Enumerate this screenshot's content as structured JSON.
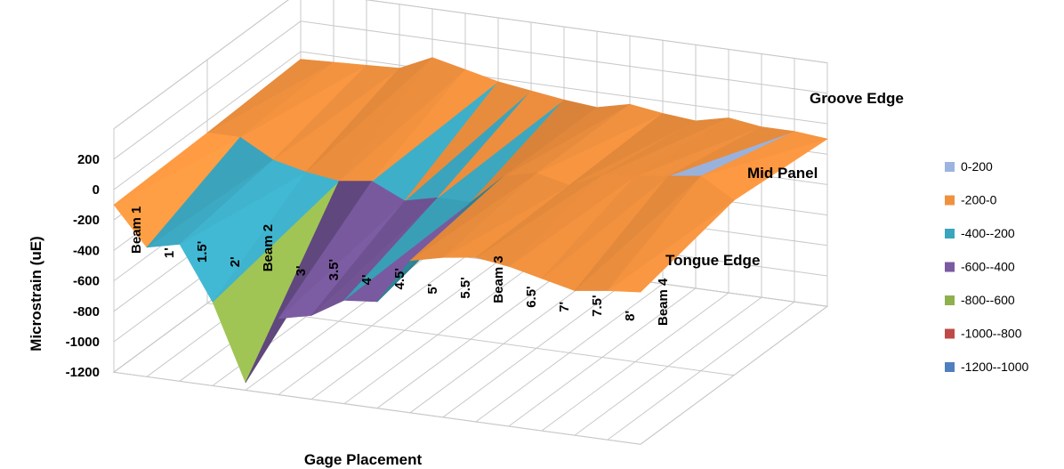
{
  "chart_data": {
    "type": "surface",
    "xlabel": "Gage Placement",
    "ylabel": "Microstrain (uE)",
    "zlim": [
      -1200,
      200
    ],
    "z_ticks": [
      "200",
      "0",
      "-200",
      "-400",
      "-600",
      "-800",
      "-1000",
      "-1200"
    ],
    "categories": [
      "Beam 1",
      "1'",
      "1.5'",
      "2'",
      "Beam 2",
      "3'",
      "3.5'",
      "4'",
      "4.5'",
      "5'",
      "5.5'",
      "Beam 3",
      "6.5'",
      "7'",
      "7.5'",
      "8'",
      "Beam 4"
    ],
    "series": [
      {
        "name": "Tongue Edge",
        "values": [
          -100,
          -350,
          -300,
          -650,
          -1150,
          -700,
          -650,
          -520,
          -500,
          -200,
          -150,
          -120,
          -150,
          -200,
          -250,
          -220,
          -200
        ]
      },
      {
        "name": "Mid Panel",
        "values": [
          -80,
          -80,
          -200,
          -250,
          -280,
          -250,
          -350,
          -300,
          -300,
          -100,
          -50,
          -100,
          0,
          20,
          50,
          80,
          -50
        ]
      },
      {
        "name": "Groove Edge",
        "values": [
          -50,
          -40,
          -30,
          -20,
          80,
          30,
          -20,
          -50,
          -80,
          -100,
          -50,
          -80,
          -100,
          -50,
          -80,
          -80,
          -100
        ]
      }
    ],
    "legend": {
      "position": "right",
      "bands": [
        {
          "label": "0-200",
          "color": "#9bb4e0"
        },
        {
          "label": "-200-0",
          "color": "#f0913f"
        },
        {
          "label": "-400--200",
          "color": "#3ba5bd"
        },
        {
          "label": "-600--400",
          "color": "#7a5aa0"
        },
        {
          "label": "-800--600",
          "color": "#8fb04c"
        },
        {
          "label": "-1000--800",
          "color": "#be4a48"
        },
        {
          "label": "-1200--1000",
          "color": "#4f7fbe"
        }
      ]
    },
    "grid": true
  }
}
